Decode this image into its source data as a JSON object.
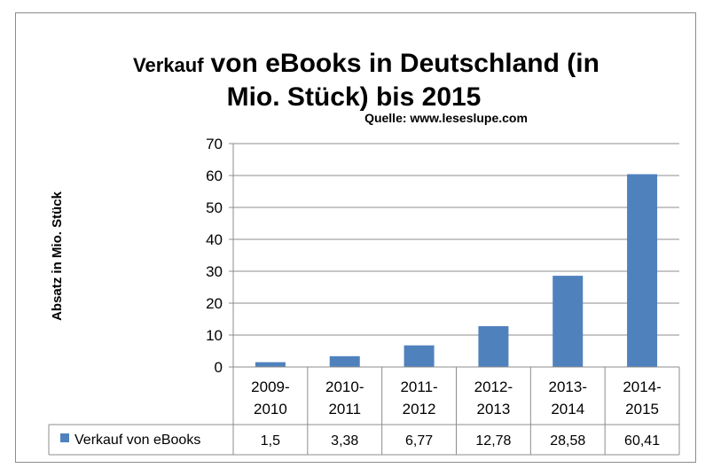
{
  "chart_data": {
    "type": "bar",
    "title_prefix": "Verkauf",
    "title_line1": "von eBooks in Deutschland (in",
    "title_line2": "Mio. Stück) bis 2015",
    "source": "Quelle: www.leseslupe.com",
    "ylabel": "Absatz in Mio. Stück",
    "xlabel": "",
    "ylim": [
      0,
      70
    ],
    "yticks": [
      0,
      10,
      20,
      30,
      40,
      50,
      60,
      70
    ],
    "grid": true,
    "categories": [
      [
        "2009-",
        "2010"
      ],
      [
        "2010-",
        "2011"
      ],
      [
        "2011-",
        "2012"
      ],
      [
        "2012-",
        "2013"
      ],
      [
        "2013-",
        "2014"
      ],
      [
        "2014-",
        "2015"
      ]
    ],
    "series": [
      {
        "name": "Verkauf von eBooks",
        "values": [
          1.5,
          3.38,
          6.77,
          12.78,
          28.58,
          60.41
        ],
        "labels": [
          "1,5",
          "3,38",
          "6,77",
          "12,78",
          "28,58",
          "60,41"
        ],
        "color": "#4f81bd"
      }
    ],
    "data_table": true
  }
}
